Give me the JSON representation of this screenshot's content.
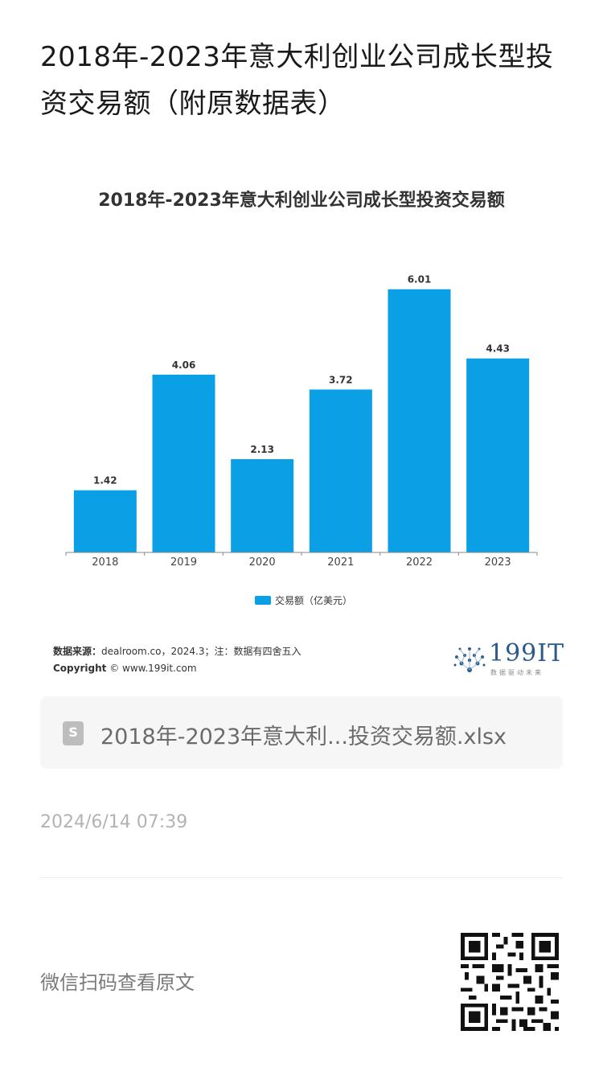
{
  "page": {
    "title": "2018年-2023年意大利创业公司成长型投资交易额（附原数据表）"
  },
  "chart_data": {
    "type": "bar",
    "title": "2018年-2023年意大利创业公司成长型投资交易额",
    "categories": [
      "2018",
      "2019",
      "2020",
      "2021",
      "2022",
      "2023"
    ],
    "series": [
      {
        "name": "交易额（亿美元）",
        "values": [
          1.42,
          4.06,
          2.13,
          3.72,
          6.01,
          4.43
        ]
      }
    ],
    "data_labels": [
      "1.42",
      "4.06",
      "2.13",
      "3.72",
      "6.01",
      "4.43"
    ],
    "ylim": [
      0,
      6.5
    ],
    "grid": false,
    "legend_position": "bottom-center",
    "bar_color": "#0ba0e6"
  },
  "source": {
    "label": "数据来源：",
    "text": "dealroom.co，2024.3；注：数据有四舍五入",
    "copyright_label": "Copyright",
    "copyright_text": "© www.199it.com"
  },
  "logo": {
    "name": "199IT",
    "tagline": "数据驱动未来",
    "color": "#2a5a8a"
  },
  "attachment": {
    "icon": "spreadsheet-file-icon",
    "icon_letter": "S",
    "filename": "2018年-2023年意大利...投资交易额.xlsx"
  },
  "meta": {
    "timestamp": "2024/6/14 07:39",
    "qr_caption": "微信扫码查看原文"
  }
}
